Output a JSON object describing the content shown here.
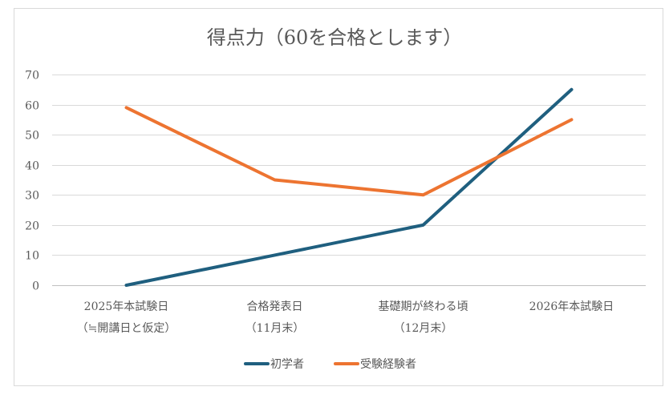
{
  "chart_data": {
    "type": "line",
    "title": "得点力（60を合格とします）",
    "categories": [
      [
        "2025年本試験日",
        "（≒開講日と仮定）"
      ],
      [
        "合格発表日",
        "（11月末）"
      ],
      [
        "基礎期が終わる頃",
        "（12月末）"
      ],
      [
        "2026年本試験日",
        ""
      ]
    ],
    "ylim": [
      0,
      70
    ],
    "yticks": [
      0,
      10,
      20,
      30,
      40,
      50,
      60,
      70
    ],
    "grid": true,
    "legend_position": "bottom",
    "series": [
      {
        "name": "初学者",
        "values": [
          0,
          10,
          20,
          65
        ],
        "color": "#1f5f7f"
      },
      {
        "name": "受験経験者",
        "values": [
          59,
          35,
          30,
          55
        ],
        "color": "#ed7431"
      }
    ]
  }
}
